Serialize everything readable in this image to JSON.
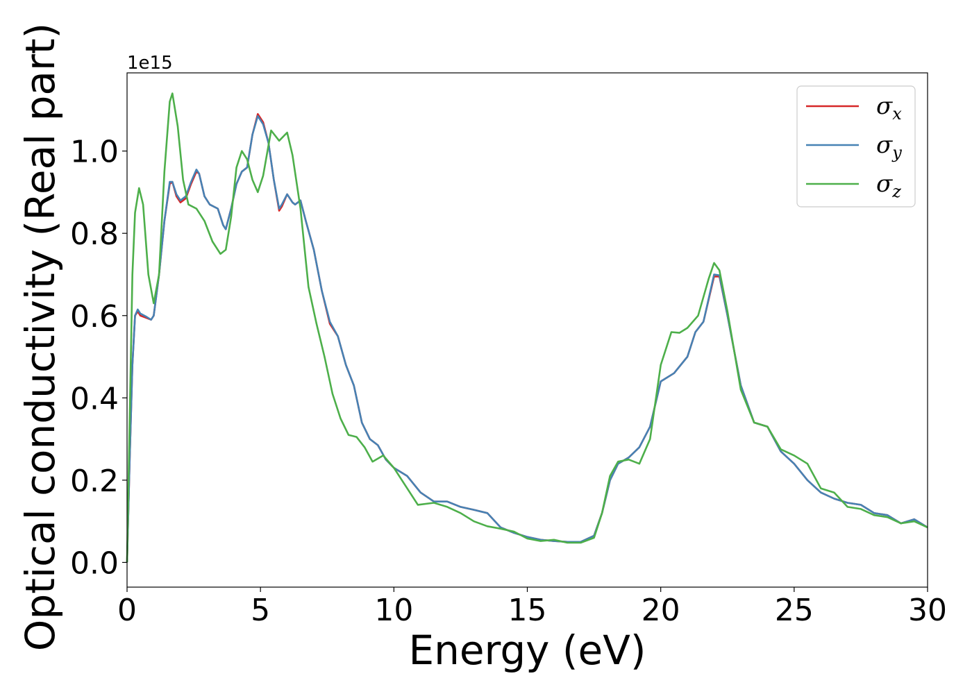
{
  "chart_data": {
    "type": "line",
    "xlabel": "Energy (eV)",
    "ylabel": "Optical conductivity (Real part)",
    "y_offset_text": "1e15",
    "xlim": [
      0,
      30
    ],
    "ylim": [
      -0.06,
      1.19
    ],
    "xticks": [
      0,
      5,
      10,
      15,
      20,
      25,
      30
    ],
    "xtick_labels": [
      "0",
      "5",
      "10",
      "15",
      "20",
      "25",
      "30"
    ],
    "yticks": [
      0.0,
      0.2,
      0.4,
      0.6,
      0.8,
      1.0
    ],
    "ytick_labels": [
      "0.0",
      "0.2",
      "0.4",
      "0.6",
      "0.8",
      "1.0"
    ],
    "grid": false,
    "legend_position": "top-right",
    "series": [
      {
        "name": "σx",
        "symbol": "σ",
        "subscript": "x",
        "color": "#d62728",
        "points": [
          [
            0,
            0
          ],
          [
            0.1,
            0.25
          ],
          [
            0.2,
            0.48
          ],
          [
            0.3,
            0.6
          ],
          [
            0.4,
            0.61
          ],
          [
            0.5,
            0.6
          ],
          [
            0.7,
            0.595
          ],
          [
            0.9,
            0.59
          ],
          [
            1.0,
            0.6
          ],
          [
            1.2,
            0.7
          ],
          [
            1.4,
            0.83
          ],
          [
            1.6,
            0.92
          ],
          [
            1.7,
            0.925
          ],
          [
            1.85,
            0.89
          ],
          [
            2.0,
            0.875
          ],
          [
            2.2,
            0.885
          ],
          [
            2.4,
            0.92
          ],
          [
            2.6,
            0.95
          ],
          [
            2.7,
            0.945
          ],
          [
            2.9,
            0.89
          ],
          [
            3.1,
            0.87
          ],
          [
            3.4,
            0.86
          ],
          [
            3.6,
            0.82
          ],
          [
            3.7,
            0.81
          ],
          [
            3.9,
            0.86
          ],
          [
            4.1,
            0.92
          ],
          [
            4.3,
            0.95
          ],
          [
            4.5,
            0.96
          ],
          [
            4.7,
            1.04
          ],
          [
            4.9,
            1.09
          ],
          [
            5.1,
            1.07
          ],
          [
            5.3,
            1.02
          ],
          [
            5.5,
            0.93
          ],
          [
            5.7,
            0.855
          ],
          [
            5.8,
            0.865
          ],
          [
            6.0,
            0.895
          ],
          [
            6.2,
            0.875
          ],
          [
            6.3,
            0.87
          ],
          [
            6.5,
            0.88
          ],
          [
            6.7,
            0.83
          ],
          [
            7.0,
            0.76
          ],
          [
            7.3,
            0.66
          ],
          [
            7.6,
            0.58
          ],
          [
            7.9,
            0.55
          ],
          [
            8.2,
            0.48
          ],
          [
            8.5,
            0.43
          ],
          [
            8.8,
            0.34
          ],
          [
            9.1,
            0.3
          ],
          [
            9.4,
            0.285
          ],
          [
            9.7,
            0.25
          ],
          [
            10.0,
            0.23
          ],
          [
            10.5,
            0.21
          ],
          [
            11.0,
            0.17
          ],
          [
            11.5,
            0.148
          ],
          [
            12.0,
            0.148
          ],
          [
            12.5,
            0.135
          ],
          [
            13.0,
            0.128
          ],
          [
            13.5,
            0.12
          ],
          [
            14.0,
            0.085
          ],
          [
            14.5,
            0.072
          ],
          [
            15.0,
            0.062
          ],
          [
            15.5,
            0.055
          ],
          [
            16.0,
            0.052
          ],
          [
            16.5,
            0.05
          ],
          [
            17.0,
            0.05
          ],
          [
            17.5,
            0.065
          ],
          [
            17.8,
            0.12
          ],
          [
            18.1,
            0.2
          ],
          [
            18.4,
            0.24
          ],
          [
            18.8,
            0.255
          ],
          [
            19.2,
            0.28
          ],
          [
            19.6,
            0.33
          ],
          [
            20.0,
            0.44
          ],
          [
            20.5,
            0.46
          ],
          [
            21.0,
            0.5
          ],
          [
            21.3,
            0.56
          ],
          [
            21.6,
            0.585
          ],
          [
            22.0,
            0.695
          ],
          [
            22.2,
            0.695
          ],
          [
            22.5,
            0.6
          ],
          [
            23.0,
            0.43
          ],
          [
            23.5,
            0.34
          ],
          [
            24.0,
            0.33
          ],
          [
            24.5,
            0.27
          ],
          [
            25.0,
            0.24
          ],
          [
            25.5,
            0.2
          ],
          [
            26.0,
            0.17
          ],
          [
            26.5,
            0.155
          ],
          [
            27.0,
            0.145
          ],
          [
            27.5,
            0.14
          ],
          [
            28.0,
            0.12
          ],
          [
            28.5,
            0.115
          ],
          [
            29.0,
            0.095
          ],
          [
            29.5,
            0.105
          ],
          [
            30.0,
            0.085
          ]
        ]
      },
      {
        "name": "σy",
        "symbol": "σ",
        "subscript": "y",
        "color": "#4682b4",
        "points": [
          [
            0,
            0
          ],
          [
            0.1,
            0.25
          ],
          [
            0.2,
            0.48
          ],
          [
            0.3,
            0.6
          ],
          [
            0.4,
            0.615
          ],
          [
            0.5,
            0.605
          ],
          [
            0.7,
            0.598
          ],
          [
            0.9,
            0.59
          ],
          [
            1.0,
            0.6
          ],
          [
            1.2,
            0.7
          ],
          [
            1.4,
            0.83
          ],
          [
            1.6,
            0.925
          ],
          [
            1.7,
            0.925
          ],
          [
            1.85,
            0.895
          ],
          [
            2.0,
            0.88
          ],
          [
            2.2,
            0.89
          ],
          [
            2.4,
            0.925
          ],
          [
            2.6,
            0.955
          ],
          [
            2.7,
            0.945
          ],
          [
            2.9,
            0.89
          ],
          [
            3.1,
            0.87
          ],
          [
            3.4,
            0.86
          ],
          [
            3.6,
            0.82
          ],
          [
            3.7,
            0.81
          ],
          [
            3.9,
            0.86
          ],
          [
            4.1,
            0.92
          ],
          [
            4.3,
            0.95
          ],
          [
            4.5,
            0.96
          ],
          [
            4.7,
            1.04
          ],
          [
            4.9,
            1.085
          ],
          [
            5.1,
            1.065
          ],
          [
            5.3,
            1.02
          ],
          [
            5.5,
            0.93
          ],
          [
            5.7,
            0.86
          ],
          [
            5.8,
            0.87
          ],
          [
            6.0,
            0.895
          ],
          [
            6.2,
            0.875
          ],
          [
            6.3,
            0.87
          ],
          [
            6.5,
            0.88
          ],
          [
            6.7,
            0.83
          ],
          [
            7.0,
            0.76
          ],
          [
            7.3,
            0.66
          ],
          [
            7.6,
            0.585
          ],
          [
            7.9,
            0.55
          ],
          [
            8.2,
            0.48
          ],
          [
            8.5,
            0.43
          ],
          [
            8.8,
            0.34
          ],
          [
            9.1,
            0.3
          ],
          [
            9.4,
            0.285
          ],
          [
            9.7,
            0.25
          ],
          [
            10.0,
            0.23
          ],
          [
            10.5,
            0.21
          ],
          [
            11.0,
            0.17
          ],
          [
            11.5,
            0.148
          ],
          [
            12.0,
            0.148
          ],
          [
            12.5,
            0.135
          ],
          [
            13.0,
            0.128
          ],
          [
            13.5,
            0.12
          ],
          [
            14.0,
            0.085
          ],
          [
            14.5,
            0.072
          ],
          [
            15.0,
            0.062
          ],
          [
            15.5,
            0.055
          ],
          [
            16.0,
            0.052
          ],
          [
            16.5,
            0.05
          ],
          [
            17.0,
            0.05
          ],
          [
            17.5,
            0.065
          ],
          [
            17.8,
            0.12
          ],
          [
            18.1,
            0.2
          ],
          [
            18.4,
            0.24
          ],
          [
            18.8,
            0.255
          ],
          [
            19.2,
            0.28
          ],
          [
            19.6,
            0.33
          ],
          [
            20.0,
            0.44
          ],
          [
            20.5,
            0.46
          ],
          [
            21.0,
            0.5
          ],
          [
            21.3,
            0.56
          ],
          [
            21.6,
            0.585
          ],
          [
            22.0,
            0.7
          ],
          [
            22.2,
            0.698
          ],
          [
            22.5,
            0.6
          ],
          [
            23.0,
            0.43
          ],
          [
            23.5,
            0.34
          ],
          [
            24.0,
            0.33
          ],
          [
            24.5,
            0.27
          ],
          [
            25.0,
            0.24
          ],
          [
            25.5,
            0.2
          ],
          [
            26.0,
            0.17
          ],
          [
            26.5,
            0.155
          ],
          [
            27.0,
            0.145
          ],
          [
            27.5,
            0.14
          ],
          [
            28.0,
            0.12
          ],
          [
            28.5,
            0.115
          ],
          [
            29.0,
            0.095
          ],
          [
            29.5,
            0.105
          ],
          [
            30.0,
            0.085
          ]
        ]
      },
      {
        "name": "σz",
        "symbol": "σ",
        "subscript": "z",
        "color": "#4daf4a",
        "points": [
          [
            0,
            0
          ],
          [
            0.1,
            0.35
          ],
          [
            0.2,
            0.7
          ],
          [
            0.3,
            0.85
          ],
          [
            0.45,
            0.91
          ],
          [
            0.6,
            0.87
          ],
          [
            0.8,
            0.7
          ],
          [
            1.0,
            0.63
          ],
          [
            1.2,
            0.7
          ],
          [
            1.4,
            0.95
          ],
          [
            1.6,
            1.12
          ],
          [
            1.7,
            1.14
          ],
          [
            1.9,
            1.06
          ],
          [
            2.1,
            0.93
          ],
          [
            2.3,
            0.87
          ],
          [
            2.6,
            0.86
          ],
          [
            2.9,
            0.83
          ],
          [
            3.2,
            0.78
          ],
          [
            3.5,
            0.75
          ],
          [
            3.7,
            0.76
          ],
          [
            3.9,
            0.84
          ],
          [
            4.1,
            0.96
          ],
          [
            4.3,
            1.0
          ],
          [
            4.5,
            0.98
          ],
          [
            4.7,
            0.93
          ],
          [
            4.9,
            0.9
          ],
          [
            5.1,
            0.94
          ],
          [
            5.4,
            1.05
          ],
          [
            5.7,
            1.025
          ],
          [
            6.0,
            1.045
          ],
          [
            6.2,
            0.99
          ],
          [
            6.5,
            0.86
          ],
          [
            6.8,
            0.67
          ],
          [
            7.1,
            0.58
          ],
          [
            7.4,
            0.5
          ],
          [
            7.7,
            0.41
          ],
          [
            8.0,
            0.35
          ],
          [
            8.3,
            0.31
          ],
          [
            8.6,
            0.305
          ],
          [
            8.9,
            0.28
          ],
          [
            9.2,
            0.245
          ],
          [
            9.6,
            0.26
          ],
          [
            10.0,
            0.23
          ],
          [
            10.5,
            0.18
          ],
          [
            10.9,
            0.14
          ],
          [
            11.5,
            0.145
          ],
          [
            12.0,
            0.135
          ],
          [
            12.5,
            0.12
          ],
          [
            13.0,
            0.1
          ],
          [
            13.5,
            0.088
          ],
          [
            14.0,
            0.082
          ],
          [
            14.5,
            0.075
          ],
          [
            15.0,
            0.058
          ],
          [
            15.5,
            0.052
          ],
          [
            16.0,
            0.055
          ],
          [
            16.5,
            0.048
          ],
          [
            17.0,
            0.048
          ],
          [
            17.5,
            0.06
          ],
          [
            17.8,
            0.12
          ],
          [
            18.1,
            0.21
          ],
          [
            18.4,
            0.245
          ],
          [
            18.8,
            0.25
          ],
          [
            19.2,
            0.24
          ],
          [
            19.6,
            0.3
          ],
          [
            20.0,
            0.48
          ],
          [
            20.4,
            0.56
          ],
          [
            20.7,
            0.558
          ],
          [
            21.0,
            0.57
          ],
          [
            21.4,
            0.6
          ],
          [
            21.8,
            0.69
          ],
          [
            22.0,
            0.728
          ],
          [
            22.2,
            0.71
          ],
          [
            22.5,
            0.61
          ],
          [
            23.0,
            0.42
          ],
          [
            23.5,
            0.34
          ],
          [
            24.0,
            0.33
          ],
          [
            24.5,
            0.275
          ],
          [
            25.0,
            0.26
          ],
          [
            25.5,
            0.24
          ],
          [
            26.0,
            0.18
          ],
          [
            26.5,
            0.17
          ],
          [
            27.0,
            0.135
          ],
          [
            27.5,
            0.13
          ],
          [
            28.0,
            0.115
          ],
          [
            28.5,
            0.11
          ],
          [
            29.0,
            0.095
          ],
          [
            29.5,
            0.1
          ],
          [
            30.0,
            0.085
          ]
        ]
      }
    ]
  }
}
